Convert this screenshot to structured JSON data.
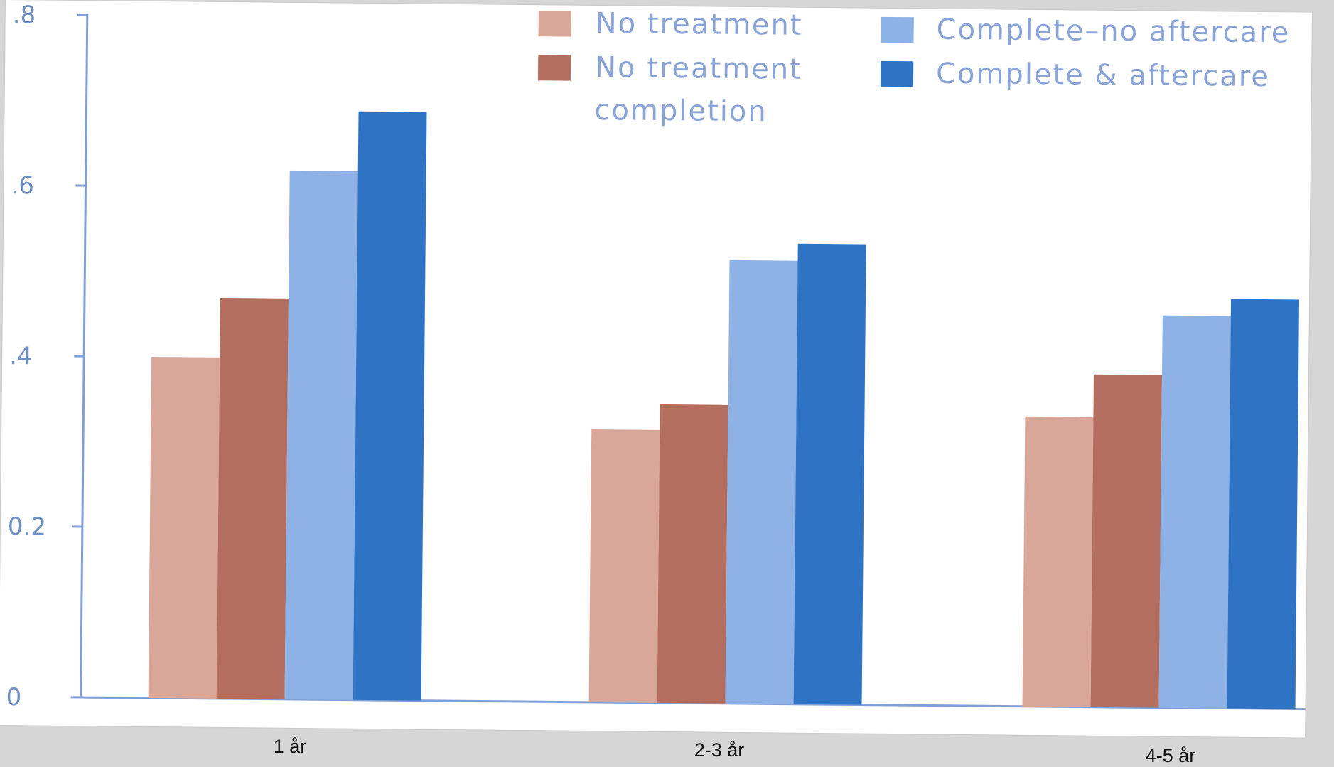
{
  "chart_data": {
    "type": "bar",
    "categories": [
      "1 år",
      "2-3 år",
      "4-5 år"
    ],
    "series": [
      {
        "name": "No treatment",
        "color": "#d9a79a",
        "values": [
          0.4,
          0.32,
          0.34
        ]
      },
      {
        "name": "No treatment completion",
        "color": "#b46e60",
        "values": [
          0.47,
          0.35,
          0.39
        ]
      },
      {
        "name": "Complete–no aftercare",
        "color": "#8fb2e6",
        "values": [
          0.62,
          0.52,
          0.46
        ]
      },
      {
        "name": "Complete & aftercare",
        "color": "#2f73c4",
        "values": [
          0.69,
          0.54,
          0.48
        ]
      }
    ],
    "y_ticks": [
      ".8",
      ".6",
      ".4",
      "0.2",
      "0"
    ],
    "ylim": [
      0,
      0.8
    ],
    "title": "",
    "xlabel": "",
    "ylabel": "",
    "grid": false,
    "legend_position": "top-right",
    "axis_color": "#7f9fd6"
  },
  "legend": {
    "col1": [
      {
        "lines": [
          "No treatment"
        ],
        "color": "#d9a79a"
      },
      {
        "lines": [
          "No treatment",
          "completion"
        ],
        "color": "#b46e60"
      }
    ],
    "col2": [
      {
        "lines": [
          "Complete–no aftercare"
        ],
        "color": "#8fb2e6"
      },
      {
        "lines": [
          "Complete & aftercare"
        ],
        "color": "#2f73c4"
      }
    ]
  }
}
